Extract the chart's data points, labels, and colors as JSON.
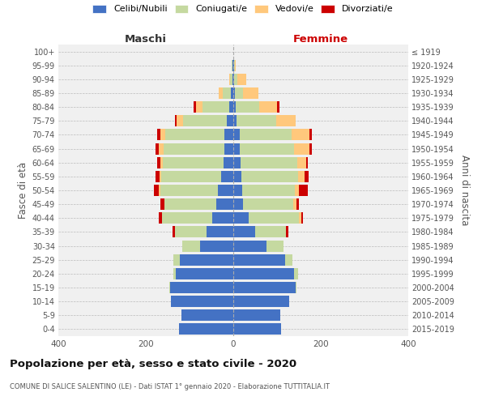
{
  "age_groups": [
    "0-4",
    "5-9",
    "10-14",
    "15-19",
    "20-24",
    "25-29",
    "30-34",
    "35-39",
    "40-44",
    "45-49",
    "50-54",
    "55-59",
    "60-64",
    "65-69",
    "70-74",
    "75-79",
    "80-84",
    "85-89",
    "90-94",
    "95-99",
    "100+"
  ],
  "birth_years": [
    "2015-2019",
    "2010-2014",
    "2005-2009",
    "2000-2004",
    "1995-1999",
    "1990-1994",
    "1985-1989",
    "1980-1984",
    "1975-1979",
    "1970-1974",
    "1965-1969",
    "1960-1964",
    "1955-1959",
    "1950-1954",
    "1945-1949",
    "1940-1944",
    "1935-1939",
    "1930-1934",
    "1925-1929",
    "1920-1924",
    "≤ 1919"
  ],
  "maschi": {
    "celibi": [
      125,
      118,
      142,
      145,
      132,
      122,
      76,
      62,
      48,
      38,
      36,
      28,
      22,
      20,
      20,
      14,
      10,
      5,
      2,
      2,
      0
    ],
    "coniugati": [
      0,
      0,
      0,
      2,
      5,
      15,
      40,
      72,
      115,
      120,
      130,
      136,
      140,
      140,
      135,
      100,
      60,
      20,
      5,
      1,
      0
    ],
    "vedovi": [
      0,
      0,
      0,
      0,
      0,
      0,
      0,
      0,
      0,
      0,
      5,
      5,
      5,
      10,
      12,
      15,
      15,
      8,
      3,
      0,
      0
    ],
    "divorziati": [
      0,
      0,
      0,
      0,
      0,
      0,
      0,
      5,
      8,
      8,
      10,
      8,
      8,
      8,
      8,
      5,
      5,
      0,
      0,
      0,
      0
    ]
  },
  "femmine": {
    "nubili": [
      110,
      108,
      128,
      142,
      138,
      118,
      75,
      50,
      35,
      22,
      20,
      18,
      16,
      14,
      14,
      8,
      5,
      3,
      2,
      1,
      0
    ],
    "coniugate": [
      0,
      0,
      0,
      3,
      10,
      18,
      40,
      70,
      115,
      115,
      120,
      130,
      130,
      125,
      120,
      90,
      55,
      20,
      8,
      2,
      0
    ],
    "vedove": [
      0,
      0,
      0,
      0,
      0,
      0,
      0,
      0,
      5,
      8,
      10,
      15,
      20,
      35,
      40,
      45,
      40,
      35,
      20,
      2,
      0
    ],
    "divorziate": [
      0,
      0,
      0,
      0,
      0,
      0,
      0,
      5,
      5,
      5,
      20,
      10,
      5,
      5,
      5,
      0,
      5,
      0,
      0,
      0,
      0
    ]
  },
  "colors": {
    "celibi_nubili": "#4472c4",
    "coniugati": "#c5d9a0",
    "vedovi": "#ffc87c",
    "divorziati": "#cc0000"
  },
  "xlim": 400,
  "title": "Popolazione per età, sesso e stato civile - 2020",
  "subtitle": "COMUNE DI SALICE SALENTINO (LE) - Dati ISTAT 1° gennaio 2020 - Elaborazione TUTTITALIA.IT",
  "ylabel_left": "Fasce di età",
  "ylabel_right": "Anni di nascita",
  "header_maschi": "Maschi",
  "header_femmine": "Femmine",
  "bg_color": "#f0f0f0",
  "grid_color": "#cccccc"
}
